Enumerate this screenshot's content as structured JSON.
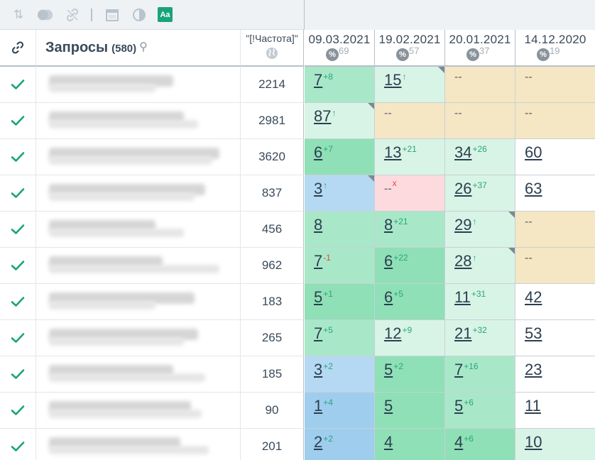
{
  "toolbar": {
    "icons": [
      "sort-icon",
      "toggle-icon",
      "link-disabled-icon",
      "calendar-icon",
      "contrast-icon",
      "font-icon"
    ],
    "font_button_label": "Aa"
  },
  "header": {
    "queries_title": "Запросы",
    "queries_count": "(580)",
    "frequency_label": "\"[!Частота]\"",
    "dates": [
      {
        "date": "09.03.2021",
        "pct_symbol": "%",
        "pct_value": "69"
      },
      {
        "date": "19.02.2021",
        "pct_symbol": "%",
        "pct_value": "57"
      },
      {
        "date": "20.01.2021",
        "pct_symbol": "%",
        "pct_value": "37"
      },
      {
        "date": "14.12.2020",
        "pct_symbol": "%",
        "pct_value": "19"
      }
    ]
  },
  "colors": {
    "green_dark": "#8fe0b6",
    "green_mid": "#a8e8c8",
    "green_light": "#d8f4e6",
    "blue": "#b5d9f2",
    "blue_dark": "#9fcdee",
    "yellow": "#f5e6c4",
    "red": "#fcdadd",
    "white": "#ffffff",
    "check": "#1aa37a"
  },
  "rows": [
    {
      "freq": "2214",
      "blur": [
        175,
        150
      ],
      "cells": [
        {
          "v": "7",
          "c": "+8",
          "d": "up",
          "bg": "green_mid"
        },
        {
          "v": "15",
          "c": "↑",
          "d": "up",
          "bg": "green_light",
          "corner": true
        },
        {
          "v": "--",
          "bg": "yellow"
        },
        {
          "v": "--",
          "bg": "yellow"
        }
      ]
    },
    {
      "freq": "2981",
      "blur": [
        190,
        210
      ],
      "cells": [
        {
          "v": "87",
          "c": "↑",
          "d": "up",
          "bg": "green_light",
          "corner": true
        },
        {
          "v": "--",
          "bg": "yellow"
        },
        {
          "v": "--",
          "bg": "yellow"
        },
        {
          "v": "--",
          "bg": "yellow"
        }
      ]
    },
    {
      "freq": "3620",
      "blur": [
        240,
        230
      ],
      "cells": [
        {
          "v": "6",
          "c": "+7",
          "d": "up",
          "bg": "green_dark"
        },
        {
          "v": "13",
          "c": "+21",
          "d": "up",
          "bg": "green_light"
        },
        {
          "v": "34",
          "c": "+26",
          "d": "up",
          "bg": "green_light"
        },
        {
          "v": "60",
          "bg": "white"
        }
      ]
    },
    {
      "freq": "837",
      "blur": [
        220,
        205
      ],
      "cells": [
        {
          "v": "3",
          "c": "↑",
          "d": "up",
          "bg": "blue",
          "corner": true
        },
        {
          "v": "--",
          "c": "x",
          "d": "x",
          "bg": "red"
        },
        {
          "v": "26",
          "c": "+37",
          "d": "up",
          "bg": "green_light"
        },
        {
          "v": "63",
          "bg": "white"
        }
      ]
    },
    {
      "freq": "456",
      "blur": [
        150,
        190
      ],
      "cells": [
        {
          "v": "8",
          "bg": "green_mid"
        },
        {
          "v": "8",
          "c": "+21",
          "d": "up",
          "bg": "green_mid"
        },
        {
          "v": "29",
          "c": "↑",
          "d": "up",
          "bg": "green_light",
          "corner": true
        },
        {
          "v": "--",
          "bg": "yellow"
        }
      ]
    },
    {
      "freq": "962",
      "blur": [
        160,
        240
      ],
      "cells": [
        {
          "v": "7",
          "c": "-1",
          "d": "down",
          "bg": "green_mid"
        },
        {
          "v": "6",
          "c": "+22",
          "d": "up",
          "bg": "green_dark"
        },
        {
          "v": "28",
          "c": "↑",
          "d": "up",
          "bg": "green_light",
          "corner": true
        },
        {
          "v": "--",
          "bg": "yellow"
        }
      ]
    },
    {
      "freq": "183",
      "blur": [
        205,
        150
      ],
      "cells": [
        {
          "v": "5",
          "c": "+1",
          "d": "up",
          "bg": "green_dark"
        },
        {
          "v": "6",
          "c": "+5",
          "d": "up",
          "bg": "green_dark"
        },
        {
          "v": "11",
          "c": "+31",
          "d": "up",
          "bg": "green_light"
        },
        {
          "v": "42",
          "bg": "white"
        }
      ]
    },
    {
      "freq": "265",
      "blur": [
        210,
        190
      ],
      "cells": [
        {
          "v": "7",
          "c": "+5",
          "d": "up",
          "bg": "green_mid"
        },
        {
          "v": "12",
          "c": "+9",
          "d": "up",
          "bg": "green_light"
        },
        {
          "v": "21",
          "c": "+32",
          "d": "up",
          "bg": "green_light"
        },
        {
          "v": "53",
          "bg": "white"
        }
      ]
    },
    {
      "freq": "185",
      "blur": [
        175,
        220
      ],
      "cells": [
        {
          "v": "3",
          "c": "+2",
          "d": "up",
          "bg": "blue"
        },
        {
          "v": "5",
          "c": "+2",
          "d": "up",
          "bg": "green_dark"
        },
        {
          "v": "7",
          "c": "+16",
          "d": "up",
          "bg": "green_mid"
        },
        {
          "v": "23",
          "bg": "white"
        }
      ]
    },
    {
      "freq": "90",
      "blur": [
        200,
        215
      ],
      "cells": [
        {
          "v": "1",
          "c": "+4",
          "d": "up",
          "bg": "blue_dark"
        },
        {
          "v": "5",
          "bg": "green_dark"
        },
        {
          "v": "5",
          "c": "+6",
          "d": "up",
          "bg": "green_mid"
        },
        {
          "v": "11",
          "bg": "white"
        }
      ]
    },
    {
      "freq": "201",
      "blur": [
        185,
        225
      ],
      "cells": [
        {
          "v": "2",
          "c": "+2",
          "d": "up",
          "bg": "blue_dark"
        },
        {
          "v": "4",
          "bg": "green_dark"
        },
        {
          "v": "4",
          "c": "+6",
          "d": "up",
          "bg": "green_dark"
        },
        {
          "v": "10",
          "bg": "green_light"
        }
      ]
    }
  ]
}
